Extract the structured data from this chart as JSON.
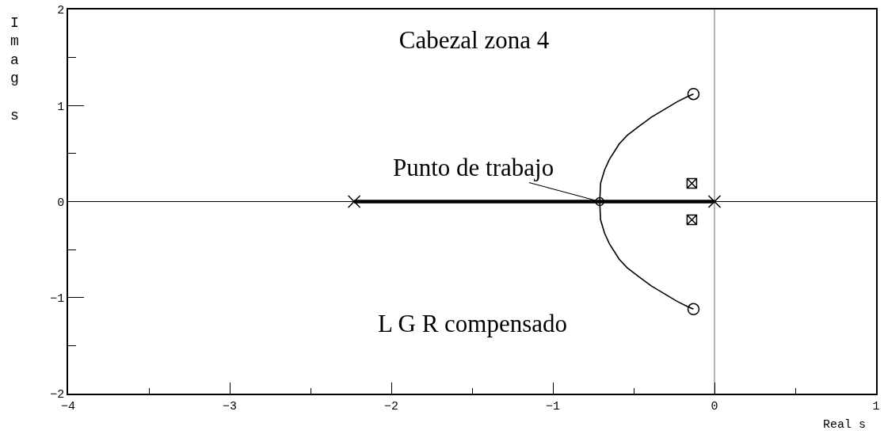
{
  "chart_data": {
    "type": "line",
    "title": "Cabezal zona 4",
    "xlabel": "Real s",
    "ylabel": "Imag s",
    "annotations": [
      "L G R compensado",
      {
        "text": "Punto de trabajo",
        "x": -0.71,
        "y": 0
      }
    ],
    "xlim": [
      -4,
      1
    ],
    "xticks": [
      -4,
      {
        "value": -3.5,
        "label": null
      },
      -3,
      {
        "value": -2.5,
        "label": null
      },
      -2,
      {
        "value": -1.5,
        "label": null
      },
      -1,
      {
        "value": -0.5,
        "label": null
      },
      0,
      {
        "value": 0.5,
        "label": null
      },
      1
    ],
    "ylim": [
      -2,
      2
    ],
    "yticks": [
      -2,
      {
        "value": -1.5,
        "label": null
      },
      -1,
      {
        "value": -0.5,
        "label": null
      },
      0,
      {
        "value": 0.5,
        "label": null
      },
      1,
      {
        "value": 1.5,
        "label": null
      },
      2
    ],
    "ref_lines": [
      {
        "axis": "y",
        "value": 0,
        "color": "#000000"
      },
      {
        "axis": "x",
        "value": 0,
        "color": "#808080"
      }
    ],
    "series": [
      {
        "color": "#000000",
        "marker": "none",
        "x": [
          -2.23,
          0
        ],
        "values": [
          0,
          0
        ]
      },
      {
        "color": "#000000",
        "marker": "none",
        "x": [
          -0.71,
          -0.705,
          -0.68,
          -0.65,
          -0.62,
          -0.59,
          -0.54,
          -0.47,
          -0.39,
          -0.31,
          -0.23,
          -0.17,
          -0.13
        ],
        "values": [
          0,
          0.19,
          0.33,
          0.44,
          0.52,
          0.6,
          0.69,
          0.78,
          0.88,
          0.96,
          1.04,
          1.09,
          1.12
        ]
      },
      {
        "color": "#000000",
        "marker": "none",
        "x": [
          -0.71,
          -0.705,
          -0.68,
          -0.65,
          -0.62,
          -0.59,
          -0.54,
          -0.47,
          -0.39,
          -0.31,
          -0.23,
          -0.17,
          -0.13
        ],
        "values": [
          0,
          -0.19,
          -0.33,
          -0.44,
          -0.52,
          -0.6,
          -0.69,
          -0.78,
          -0.88,
          -0.96,
          -1.04,
          -1.09,
          -1.12
        ]
      },
      {
        "type": "scatter",
        "color": "#000000",
        "marker": "cross",
        "x": [
          -2.23,
          0
        ],
        "values": [
          0,
          0
        ]
      },
      {
        "type": "scatter",
        "color": "#000000",
        "marker": "circle",
        "x": [
          -0.13,
          -0.13
        ],
        "values": [
          1.12,
          -1.12
        ]
      },
      {
        "type": "scatter",
        "color": "#000000",
        "marker": "cross",
        "x": [
          -0.14,
          -0.14
        ],
        "values": [
          0.19,
          -0.19
        ]
      },
      {
        "type": "scatter",
        "color": "#000000",
        "marker": "circle",
        "x": [
          -0.71
        ],
        "values": [
          0
        ]
      }
    ]
  }
}
